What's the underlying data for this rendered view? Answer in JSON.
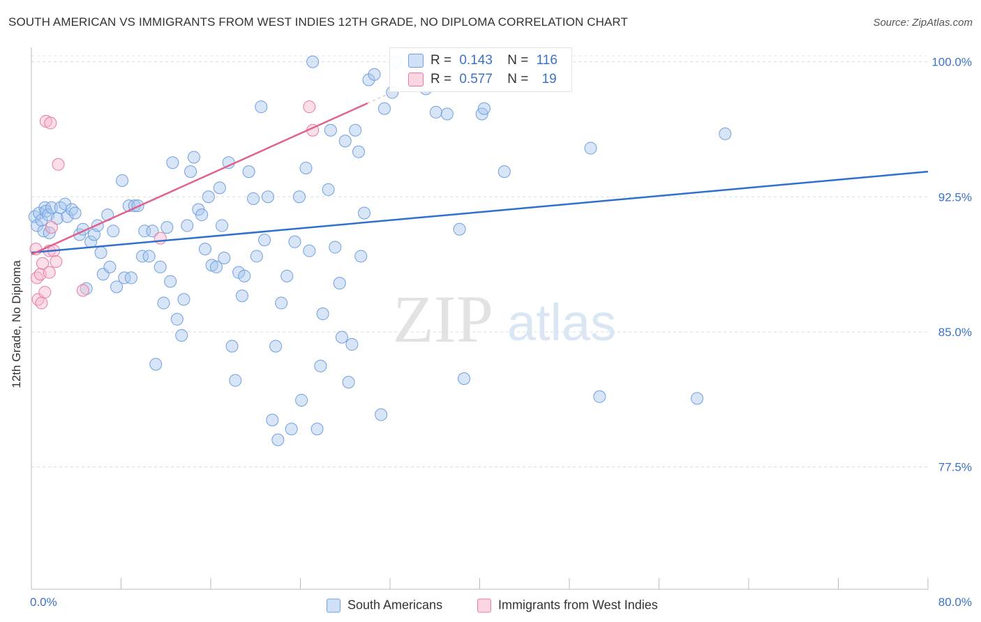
{
  "title": "SOUTH AMERICAN VS IMMIGRANTS FROM WEST INDIES 12TH GRADE, NO DIPLOMA CORRELATION CHART",
  "source": "Source: ZipAtlas.com",
  "watermark": {
    "zip": "ZIP",
    "atlas": "atlas"
  },
  "stats": [
    {
      "r_label": "R =",
      "r_value": "0.143",
      "n_label": "N =",
      "n_value": "116",
      "color": "#a9c6ee"
    },
    {
      "r_label": "R =",
      "r_value": "0.577",
      "n_label": "N =",
      "n_value": "19",
      "color": "#f7b9cb"
    }
  ],
  "legend": [
    {
      "label": "South Americans",
      "color": "#a9c6ee"
    },
    {
      "label": "Immigrants from West Indies",
      "color": "#f7b9cb"
    }
  ],
  "chart_data": {
    "type": "scatter",
    "ylabel": "12th Grade, No Diploma",
    "xlabel": "",
    "xlim": [
      0,
      80
    ],
    "ylim": [
      70.7,
      100.8
    ],
    "x_tick_labels": [
      "0.0%",
      "80.0%"
    ],
    "y_ticks": [
      77.5,
      85.0,
      92.5,
      100.0
    ],
    "y_tick_labels": [
      "77.5%",
      "85.0%",
      "92.5%",
      "100.0%"
    ],
    "grid": "horizontal dashed",
    "colors": {
      "blue": "#6f9fe0",
      "blue_fill": "#a9c6ee",
      "pink": "#e87aa0",
      "pink_fill": "#f7b9cb",
      "blue_line": "#2f6fcf",
      "pink_line": "#e0628c",
      "tick_text": "#3a72c8"
    },
    "series": [
      {
        "name": "South Americans",
        "trend": {
          "x": [
            0,
            80
          ],
          "y": [
            89.4,
            93.9
          ]
        },
        "points": [
          [
            0.3,
            91.4
          ],
          [
            0.5,
            90.9
          ],
          [
            0.7,
            91.6
          ],
          [
            0.9,
            91.2
          ],
          [
            1.1,
            90.6
          ],
          [
            1.2,
            91.9
          ],
          [
            1.3,
            91.7
          ],
          [
            1.5,
            91.5
          ],
          [
            1.6,
            90.5
          ],
          [
            1.8,
            91.9
          ],
          [
            2.3,
            91.3
          ],
          [
            2.6,
            91.9
          ],
          [
            3.0,
            92.1
          ],
          [
            3.2,
            91.4
          ],
          [
            3.6,
            91.8
          ],
          [
            3.9,
            91.6
          ],
          [
            4.3,
            90.4
          ],
          [
            4.6,
            90.7
          ],
          [
            4.9,
            87.4
          ],
          [
            5.3,
            90.0
          ],
          [
            5.6,
            90.4
          ],
          [
            5.9,
            90.9
          ],
          [
            6.2,
            89.4
          ],
          [
            6.4,
            88.2
          ],
          [
            6.8,
            91.5
          ],
          [
            7.0,
            88.6
          ],
          [
            7.3,
            90.6
          ],
          [
            7.6,
            87.5
          ],
          [
            8.1,
            93.4
          ],
          [
            8.3,
            88.0
          ],
          [
            8.7,
            92.0
          ],
          [
            8.9,
            88.0
          ],
          [
            9.2,
            92.0
          ],
          [
            9.5,
            92.0
          ],
          [
            9.9,
            89.2
          ],
          [
            10.1,
            90.6
          ],
          [
            10.5,
            89.2
          ],
          [
            10.8,
            90.6
          ],
          [
            11.1,
            83.2
          ],
          [
            11.5,
            88.6
          ],
          [
            11.8,
            86.6
          ],
          [
            12.1,
            90.8
          ],
          [
            12.4,
            87.8
          ],
          [
            12.6,
            94.4
          ],
          [
            13.0,
            85.7
          ],
          [
            13.4,
            84.8
          ],
          [
            13.6,
            86.8
          ],
          [
            13.9,
            90.9
          ],
          [
            14.2,
            93.9
          ],
          [
            14.5,
            94.7
          ],
          [
            14.9,
            91.8
          ],
          [
            15.2,
            91.5
          ],
          [
            15.5,
            89.6
          ],
          [
            15.8,
            92.5
          ],
          [
            16.1,
            88.7
          ],
          [
            16.5,
            88.6
          ],
          [
            16.8,
            93.0
          ],
          [
            17.0,
            90.9
          ],
          [
            17.2,
            89.1
          ],
          [
            17.6,
            94.4
          ],
          [
            17.9,
            84.2
          ],
          [
            18.2,
            82.3
          ],
          [
            18.5,
            88.3
          ],
          [
            18.8,
            87.0
          ],
          [
            19.0,
            88.1
          ],
          [
            19.4,
            93.9
          ],
          [
            19.8,
            92.4
          ],
          [
            20.1,
            89.2
          ],
          [
            20.5,
            97.5
          ],
          [
            20.8,
            90.1
          ],
          [
            21.1,
            92.5
          ],
          [
            21.5,
            80.1
          ],
          [
            21.8,
            84.2
          ],
          [
            22.0,
            79.0
          ],
          [
            22.3,
            86.6
          ],
          [
            22.8,
            88.1
          ],
          [
            23.2,
            79.6
          ],
          [
            23.5,
            90.0
          ],
          [
            23.9,
            92.5
          ],
          [
            24.1,
            81.2
          ],
          [
            24.5,
            94.1
          ],
          [
            24.8,
            89.5
          ],
          [
            25.1,
            100.0
          ],
          [
            25.5,
            79.6
          ],
          [
            25.8,
            83.1
          ],
          [
            26.0,
            86.0
          ],
          [
            26.5,
            92.9
          ],
          [
            26.7,
            96.2
          ],
          [
            27.1,
            89.7
          ],
          [
            27.5,
            87.7
          ],
          [
            27.7,
            84.7
          ],
          [
            28.0,
            95.6
          ],
          [
            28.3,
            82.2
          ],
          [
            28.6,
            84.3
          ],
          [
            28.9,
            96.2
          ],
          [
            29.2,
            95.0
          ],
          [
            29.4,
            89.2
          ],
          [
            29.7,
            91.6
          ],
          [
            30.1,
            99.0
          ],
          [
            30.6,
            99.3
          ],
          [
            31.2,
            80.4
          ],
          [
            31.5,
            97.4
          ],
          [
            32.2,
            98.3
          ],
          [
            32.5,
            100.0
          ],
          [
            35.2,
            98.5
          ],
          [
            36.1,
            97.2
          ],
          [
            37.1,
            97.1
          ],
          [
            38.2,
            90.7
          ],
          [
            38.6,
            82.4
          ],
          [
            40.2,
            97.1
          ],
          [
            40.4,
            97.4
          ],
          [
            42.2,
            93.9
          ],
          [
            49.9,
            95.2
          ],
          [
            50.7,
            81.4
          ],
          [
            61.9,
            96.0
          ],
          [
            59.4,
            81.3
          ]
        ]
      },
      {
        "name": "Immigrants from West Indies",
        "trend": {
          "x": [
            0,
            30.0
          ],
          "y": [
            89.3,
            97.7
          ]
        },
        "points": [
          [
            0.4,
            89.6
          ],
          [
            0.5,
            88.0
          ],
          [
            0.6,
            86.8
          ],
          [
            0.8,
            88.2
          ],
          [
            0.9,
            86.6
          ],
          [
            1.0,
            88.8
          ],
          [
            1.2,
            87.2
          ],
          [
            1.3,
            96.7
          ],
          [
            1.6,
            89.5
          ],
          [
            1.7,
            96.6
          ],
          [
            1.6,
            88.3
          ],
          [
            1.8,
            90.8
          ],
          [
            2.0,
            89.5
          ],
          [
            2.2,
            88.9
          ],
          [
            2.4,
            94.3
          ],
          [
            4.6,
            87.3
          ],
          [
            11.5,
            90.2
          ],
          [
            24.8,
            97.5
          ],
          [
            25.1,
            96.2
          ]
        ]
      }
    ]
  }
}
